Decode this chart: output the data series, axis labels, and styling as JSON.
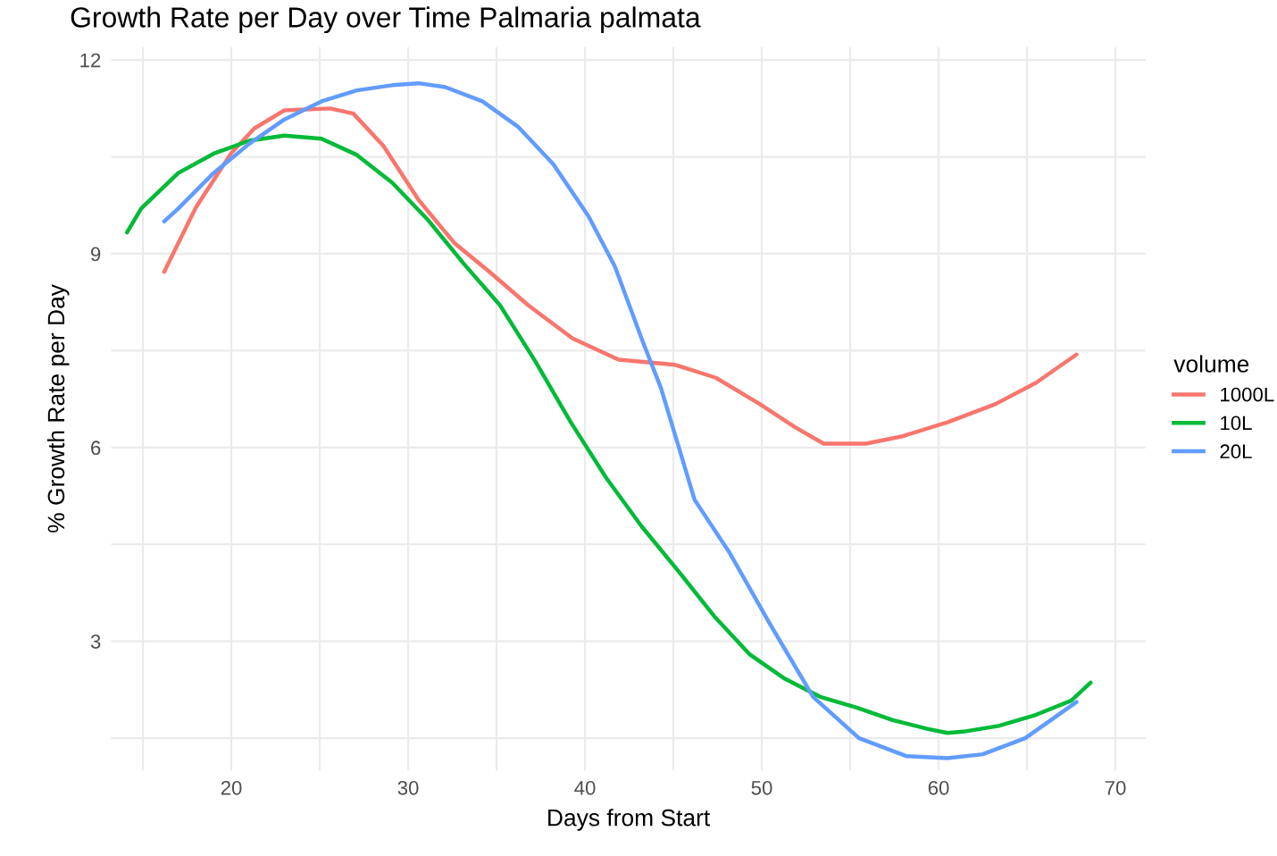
{
  "chart_data": {
    "type": "line",
    "title": "Growth Rate per Day over Time Palmaria palmata",
    "xlabel": "Days from Start",
    "ylabel": "% Growth Rate per Day",
    "legend_title": "volume",
    "legend": "right",
    "grid": true,
    "xlim": [
      13.2,
      71.7
    ],
    "ylim": [
      1.0,
      12.2
    ],
    "xticks": [
      {
        "value": 15,
        "label": null
      },
      20,
      {
        "value": 25,
        "label": null
      },
      30,
      {
        "value": 35,
        "label": null
      },
      40,
      {
        "value": 45,
        "label": null
      },
      50,
      {
        "value": 55,
        "label": null
      },
      60,
      {
        "value": 65,
        "label": null
      },
      70
    ],
    "yticks": [
      {
        "value": 1.5,
        "label": null
      },
      3,
      {
        "value": 4.5,
        "label": null
      },
      6,
      {
        "value": 7.5,
        "label": null
      },
      9,
      {
        "value": 10.5,
        "label": null
      },
      12
    ],
    "series": [
      {
        "name": "1000L",
        "color": "#f8766d",
        "x": [
          16.2,
          18.0,
          20.0,
          21.3,
          23.0,
          25.6,
          26.9,
          28.6,
          30.6,
          32.6,
          34.6,
          36.8,
          39.3,
          41.9,
          45.1,
          47.4,
          49.9,
          51.9,
          53.5,
          55.9,
          57.9,
          60.5,
          63.2,
          65.5,
          67.8
        ],
        "values": [
          8.72,
          9.72,
          10.56,
          10.94,
          11.22,
          11.25,
          11.17,
          10.67,
          9.83,
          9.17,
          8.72,
          8.2,
          7.69,
          7.36,
          7.28,
          7.08,
          6.67,
          6.31,
          6.06,
          6.06,
          6.17,
          6.39,
          6.67,
          7.0,
          7.44
        ]
      },
      {
        "name": "10L",
        "color": "#00ba38",
        "x": [
          14.1,
          14.9,
          17.0,
          19.0,
          21.0,
          23.0,
          25.1,
          27.1,
          29.1,
          31.1,
          33.1,
          35.2,
          37.2,
          39.2,
          41.2,
          43.2,
          45.3,
          47.3,
          49.3,
          51.3,
          53.3,
          55.4,
          57.4,
          59.4,
          60.5,
          61.4,
          63.4,
          65.5,
          67.5,
          68.6
        ],
        "values": [
          9.33,
          9.7,
          10.25,
          10.55,
          10.75,
          10.83,
          10.78,
          10.53,
          10.1,
          9.53,
          8.86,
          8.2,
          7.33,
          6.39,
          5.53,
          4.78,
          4.08,
          3.39,
          2.8,
          2.42,
          2.14,
          1.97,
          1.78,
          1.64,
          1.58,
          1.6,
          1.69,
          1.86,
          2.08,
          2.36
        ]
      },
      {
        "name": "20L",
        "color": "#619cff",
        "x": [
          16.2,
          17.0,
          19.0,
          21.0,
          23.0,
          25.1,
          27.1,
          29.1,
          30.6,
          32.1,
          34.2,
          36.2,
          38.2,
          40.2,
          41.7,
          43.2,
          44.3,
          46.2,
          48.2,
          50.5,
          52.9,
          55.5,
          58.2,
          60.5,
          62.5,
          64.9,
          67.8
        ],
        "values": [
          9.5,
          9.7,
          10.25,
          10.7,
          11.08,
          11.36,
          11.53,
          11.61,
          11.64,
          11.58,
          11.36,
          10.97,
          10.39,
          9.58,
          8.8,
          7.69,
          6.92,
          5.19,
          4.36,
          3.25,
          2.14,
          1.5,
          1.22,
          1.19,
          1.25,
          1.5,
          2.06
        ]
      }
    ]
  }
}
